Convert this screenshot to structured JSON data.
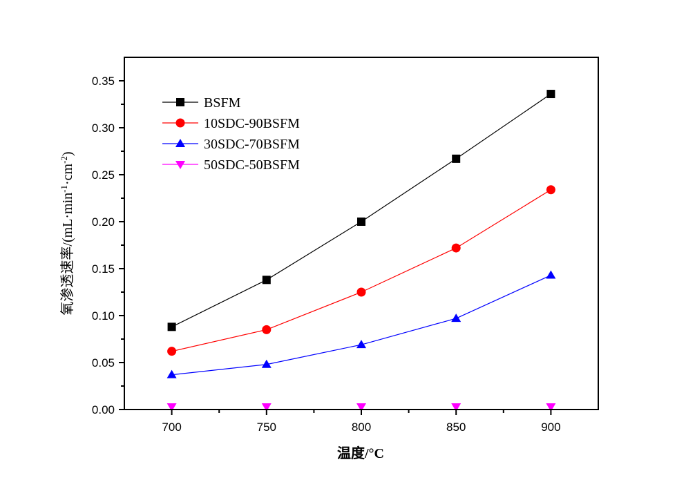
{
  "chart_data": {
    "type": "line",
    "title": "",
    "xlabel": "温度/°C",
    "ylabel": {
      "main": "氧渗透速率/(mL·min",
      "sup1": "-1",
      "mid": "·cm",
      "sup2": "-2",
      "end": ")"
    },
    "xlim": [
      675,
      925
    ],
    "ylim": [
      0,
      0.375
    ],
    "x": [
      700,
      750,
      800,
      850,
      900
    ],
    "xticks": [
      "700",
      "750",
      "800",
      "850",
      "900"
    ],
    "yticks": [
      "0.00",
      "0.05",
      "0.10",
      "0.15",
      "0.20",
      "0.25",
      "0.30",
      "0.35"
    ],
    "grid": false,
    "legend_position": "top-left",
    "series": [
      {
        "name": "BSFM",
        "color": "#000000",
        "marker": "square",
        "values": [
          0.088,
          0.138,
          0.2,
          0.267,
          0.336
        ]
      },
      {
        "name": "10SDC-90BSFM",
        "color": "#ff0000",
        "marker": "circle",
        "values": [
          0.062,
          0.085,
          0.125,
          0.172,
          0.234
        ]
      },
      {
        "name": "30SDC-70BSFM",
        "color": "#0000ff",
        "marker": "triangle-up",
        "values": [
          0.037,
          0.048,
          0.069,
          0.097,
          0.143
        ]
      },
      {
        "name": "50SDC-50BSFM",
        "color": "#ff00ff",
        "marker": "triangle-down",
        "values": [
          0.0,
          0.0,
          0.0,
          0.0,
          0.0
        ]
      }
    ]
  }
}
